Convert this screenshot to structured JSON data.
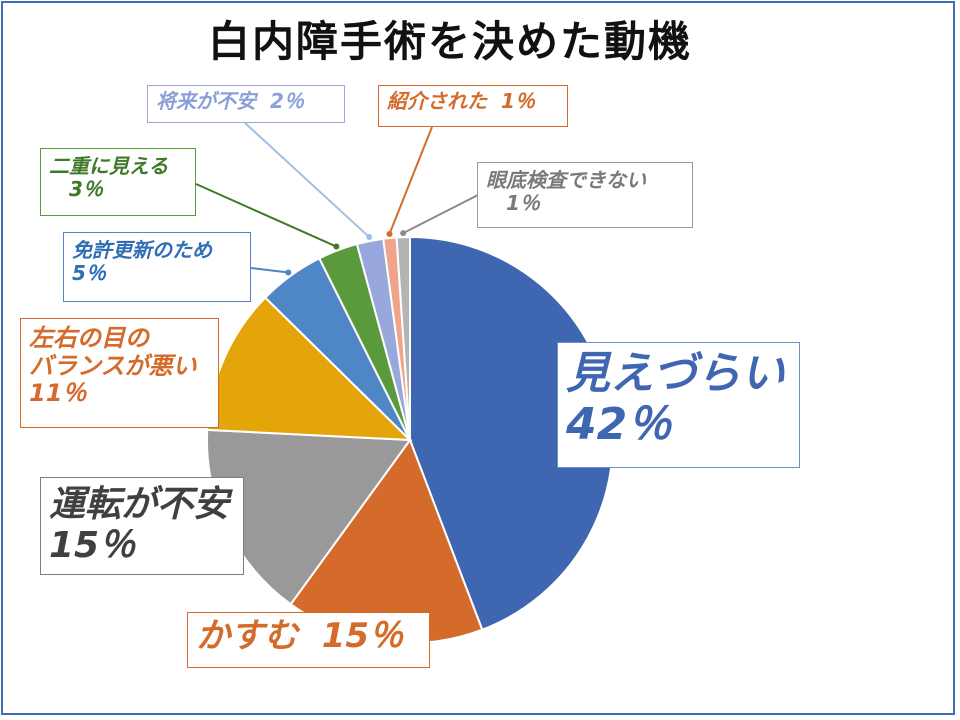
{
  "title": "白内障手術を決めた動機",
  "colors": {
    "frame": "#3f6fb0",
    "slices": [
      "#3f66b0",
      "#d46b2a",
      "#999999",
      "#e3a50a",
      "#4e86c6",
      "#5a9a3c",
      "#98a8dc",
      "#f0a48c",
      "#b4b4b4"
    ]
  },
  "chart_data": {
    "type": "pie",
    "title": "白内障手術を決めた動機",
    "slices": [
      {
        "label": "見えづらい",
        "value": 42,
        "display": "42％"
      },
      {
        "label": "かすむ",
        "value": 15,
        "display": "15％"
      },
      {
        "label": "運転が不安",
        "value": 15,
        "display": "15％"
      },
      {
        "label": "左右の目のバランスが悪い",
        "label_lines": [
          "左右の目の",
          "バランスが悪い"
        ],
        "value": 11,
        "display": "11％"
      },
      {
        "label": "免許更新のため",
        "value": 5,
        "display": "5％"
      },
      {
        "label": "二重に見える",
        "value": 3,
        "display": "3％"
      },
      {
        "label": "将来が不安",
        "value": 2,
        "display": "2％"
      },
      {
        "label": "紹介された",
        "value": 1,
        "display": "1％"
      },
      {
        "label": "眼底検査できない",
        "value": 1,
        "display": "1％"
      }
    ]
  }
}
